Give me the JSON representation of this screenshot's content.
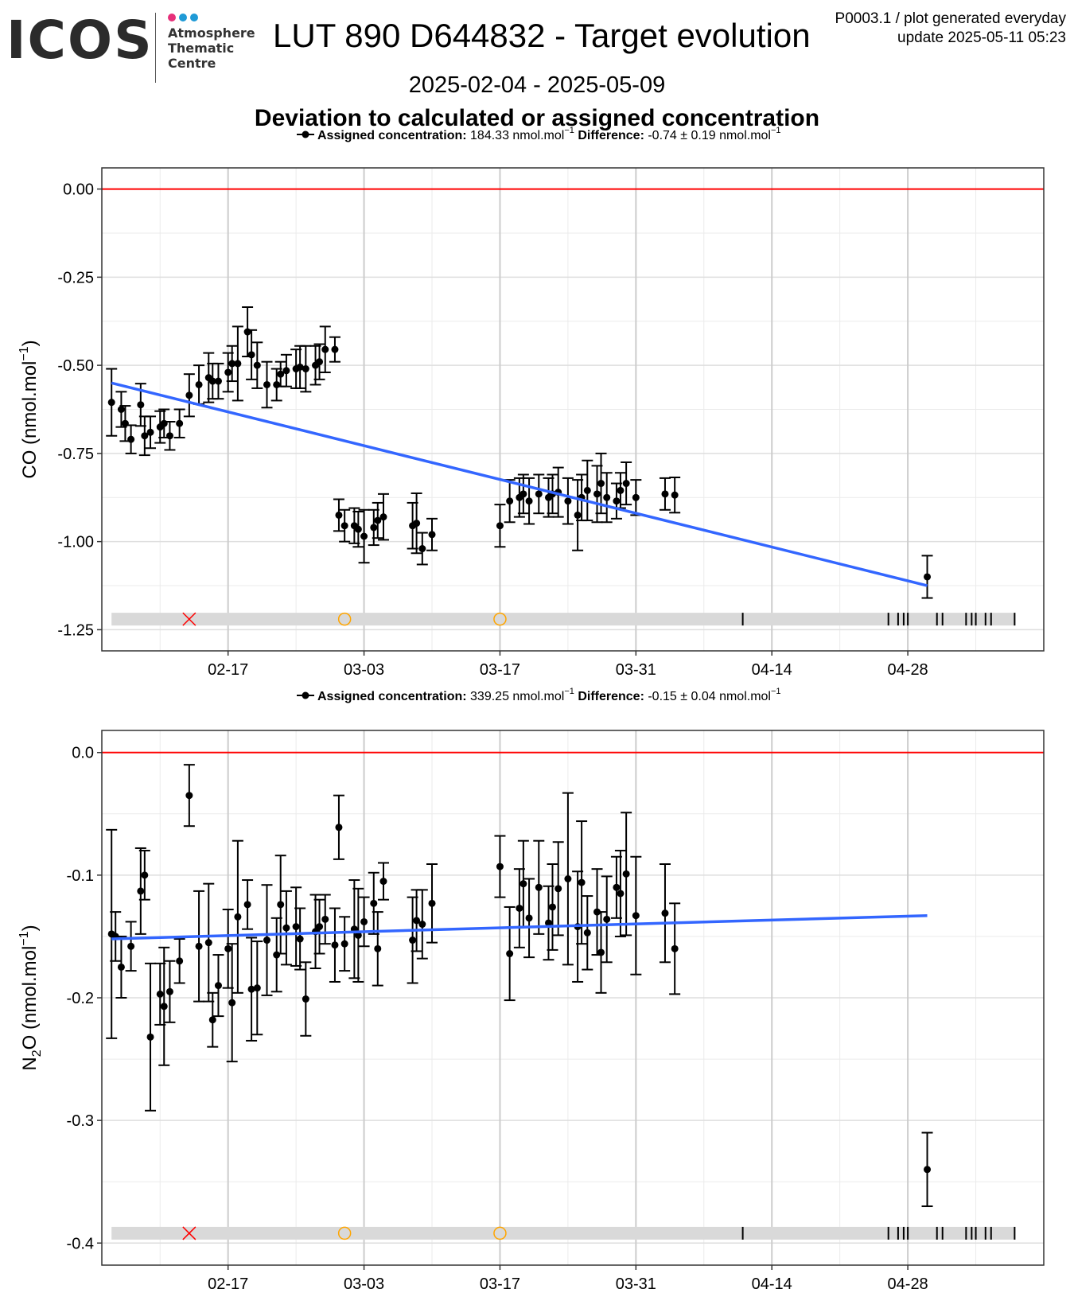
{
  "header": {
    "logo_text": "ICOS",
    "logo_lines": [
      "Atmosphere",
      "Thematic",
      "Centre"
    ],
    "logo_dot_colors": [
      "#e6307a",
      "#1f9ad6",
      "#1f9ad6"
    ],
    "title": "LUT 890 D644832 - Target evolution",
    "date_range": "2025-02-04 - 2025-05-09",
    "subtitle": "Deviation to calculated or assigned concentration",
    "meta_line1": "P0003.1 / plot generated everyday",
    "meta_line2": "update  2025-05-11 05:23"
  },
  "chart_data": [
    {
      "type": "scatter",
      "legend": {
        "assigned_label": "Assigned concentration:",
        "assigned_value": "184.33 nmol.mol",
        "assigned_exp": "−1",
        "difference_label": "Difference:",
        "difference_value": "-0.74 ± 0.19 nmol.mol",
        "difference_exp": "−1",
        "position": "top-center"
      },
      "ylabel": "CO (nmol.mol",
      "ylabel_exp": "−1",
      "ylabel_tail": ")",
      "ylim": [
        -1.31,
        0.06
      ],
      "yticks": [
        0.0,
        -0.25,
        -0.5,
        -0.75,
        -1.0,
        -1.25
      ],
      "ytick_labels": [
        "0.00",
        "-0.25",
        "-0.50",
        "-0.75",
        "-1.00",
        "-1.25"
      ],
      "y_minor": [
        -0.125,
        -0.375,
        -0.625,
        -0.875,
        -1.125
      ],
      "xlim": [
        "2025-02-04",
        "2025-05-12"
      ],
      "xticks": [
        "2025-02-17",
        "2025-03-03",
        "2025-03-17",
        "2025-03-31",
        "2025-04-14",
        "2025-04-28"
      ],
      "xtick_labels": [
        "02-17",
        "03-03",
        "03-17",
        "03-31",
        "04-14",
        "04-28"
      ],
      "grid": true,
      "reference_line": {
        "y": 0.0,
        "color": "#ff0000"
      },
      "trend": {
        "color": "#3366ff",
        "start": [
          "2025-02-05",
          -0.55
        ],
        "end": [
          "2025-04-30",
          -1.125
        ]
      },
      "points": [
        [
          "2025-02-05",
          -0.605,
          0.095
        ],
        [
          "2025-02-06",
          -0.625,
          0.05
        ],
        [
          "2025-02-06",
          -0.665,
          0.05
        ],
        [
          "2025-02-07",
          -0.71,
          0.04
        ],
        [
          "2025-02-08",
          -0.612,
          0.06
        ],
        [
          "2025-02-08",
          -0.7,
          0.055
        ],
        [
          "2025-02-09",
          -0.69,
          0.045
        ],
        [
          "2025-02-10",
          -0.675,
          0.045
        ],
        [
          "2025-02-10",
          -0.665,
          0.04
        ],
        [
          "2025-02-11",
          -0.7,
          0.04
        ],
        [
          "2025-02-12",
          -0.665,
          0.04
        ],
        [
          "2025-02-13",
          -0.585,
          0.06
        ],
        [
          "2025-02-14",
          -0.555,
          0.055
        ],
        [
          "2025-02-15",
          -0.535,
          0.07
        ],
        [
          "2025-02-15",
          -0.545,
          0.05
        ],
        [
          "2025-02-16",
          -0.545,
          0.05
        ],
        [
          "2025-02-17",
          -0.52,
          0.055
        ],
        [
          "2025-02-17",
          -0.495,
          0.05
        ],
        [
          "2025-02-18",
          -0.495,
          0.105
        ],
        [
          "2025-02-19",
          -0.405,
          0.07
        ],
        [
          "2025-02-19",
          -0.47,
          0.07
        ],
        [
          "2025-02-20",
          -0.5,
          0.065
        ],
        [
          "2025-02-21",
          -0.555,
          0.065
        ],
        [
          "2025-02-22",
          -0.555,
          0.045
        ],
        [
          "2025-02-22",
          -0.525,
          0.035
        ],
        [
          "2025-02-23",
          -0.515,
          0.045
        ],
        [
          "2025-02-24",
          -0.51,
          0.055
        ],
        [
          "2025-02-24",
          -0.505,
          0.06
        ],
        [
          "2025-02-25",
          -0.51,
          0.065
        ],
        [
          "2025-02-26",
          -0.5,
          0.055
        ],
        [
          "2025-02-26",
          -0.49,
          0.05
        ],
        [
          "2025-02-27",
          -0.455,
          0.065
        ],
        [
          "2025-02-28",
          -0.455,
          0.035
        ],
        [
          "2025-02-28",
          -0.925,
          0.045
        ],
        [
          "2025-03-01",
          -0.955,
          0.045
        ],
        [
          "2025-03-02",
          -0.955,
          0.05
        ],
        [
          "2025-03-02",
          -0.965,
          0.05
        ],
        [
          "2025-03-03",
          -0.985,
          0.075
        ],
        [
          "2025-03-04",
          -0.96,
          0.05
        ],
        [
          "2025-03-04",
          -0.94,
          0.05
        ],
        [
          "2025-03-05",
          -0.93,
          0.065
        ],
        [
          "2025-03-08",
          -0.955,
          0.065
        ],
        [
          "2025-03-08",
          -0.948,
          0.085
        ],
        [
          "2025-03-09",
          -1.02,
          0.045
        ],
        [
          "2025-03-10",
          -0.98,
          0.045
        ],
        [
          "2025-03-17",
          -0.955,
          0.06
        ],
        [
          "2025-03-18",
          -0.885,
          0.06
        ],
        [
          "2025-03-19",
          -0.875,
          0.055
        ],
        [
          "2025-03-19",
          -0.865,
          0.055
        ],
        [
          "2025-03-20",
          -0.885,
          0.065
        ],
        [
          "2025-03-21",
          -0.865,
          0.055
        ],
        [
          "2025-03-22",
          -0.875,
          0.055
        ],
        [
          "2025-03-22",
          -0.865,
          0.055
        ],
        [
          "2025-03-23",
          -0.86,
          0.07
        ],
        [
          "2025-03-24",
          -0.885,
          0.065
        ],
        [
          "2025-03-25",
          -0.925,
          0.1
        ],
        [
          "2025-03-25",
          -0.875,
          0.065
        ],
        [
          "2025-03-26",
          -0.855,
          0.085
        ],
        [
          "2025-03-27",
          -0.865,
          0.08
        ],
        [
          "2025-03-27",
          -0.835,
          0.085
        ],
        [
          "2025-03-28",
          -0.875,
          0.07
        ],
        [
          "2025-03-29",
          -0.885,
          0.05
        ],
        [
          "2025-03-29",
          -0.855,
          0.05
        ],
        [
          "2025-03-30",
          -0.835,
          0.06
        ],
        [
          "2025-03-31",
          -0.875,
          0.05
        ],
        [
          "2025-04-03",
          -0.865,
          0.045
        ],
        [
          "2025-04-04",
          -0.868,
          0.05
        ],
        [
          "2025-04-30",
          -1.1,
          0.06
        ]
      ],
      "status_band": {
        "y": -1.22,
        "color": "#d9d9d9",
        "x_marks": [
          "2025-02-13"
        ],
        "open_circles": [
          "2025-03-01",
          "2025-03-17"
        ],
        "ticks": [
          "2025-04-11",
          "2025-04-26",
          "2025-04-27",
          "2025-04-27",
          "2025-04-28",
          "2025-05-01",
          "2025-05-01",
          "2025-05-04",
          "2025-05-04",
          "2025-05-05",
          "2025-05-06",
          "2025-05-06",
          "2025-05-09"
        ]
      }
    },
    {
      "type": "scatter",
      "legend": {
        "assigned_label": "Assigned concentration:",
        "assigned_value": "339.25 nmol.mol",
        "assigned_exp": "−1",
        "difference_label": "Difference:",
        "difference_value": "-0.15 ± 0.04 nmol.mol",
        "difference_exp": "−1",
        "position": "top-center"
      },
      "ylabel": "N",
      "ylabel_sub": "2",
      "ylabel_mid": "O (nmol.mol",
      "ylabel_exp": "−1",
      "ylabel_tail": ")",
      "ylim": [
        -0.418,
        0.018
      ],
      "yticks": [
        0.0,
        -0.1,
        -0.2,
        -0.3,
        -0.4
      ],
      "ytick_labels": [
        "0.0",
        "-0.1",
        "-0.2",
        "-0.3",
        "-0.4"
      ],
      "y_minor": [
        -0.05,
        -0.15,
        -0.25,
        -0.35
      ],
      "xlim": [
        "2025-02-04",
        "2025-05-12"
      ],
      "xticks": [
        "2025-02-17",
        "2025-03-03",
        "2025-03-17",
        "2025-03-31",
        "2025-04-14",
        "2025-04-28"
      ],
      "xtick_labels": [
        "02-17",
        "03-03",
        "03-17",
        "03-31",
        "04-14",
        "04-28"
      ],
      "grid": true,
      "reference_line": {
        "y": 0.0,
        "color": "#ff0000"
      },
      "trend": {
        "color": "#3366ff",
        "start": [
          "2025-02-05",
          -0.152
        ],
        "end": [
          "2025-04-30",
          -0.133
        ]
      },
      "points": [
        [
          "2025-02-05",
          -0.148,
          0.085
        ],
        [
          "2025-02-05",
          -0.15,
          0.02
        ],
        [
          "2025-02-06",
          -0.175,
          0.025
        ],
        [
          "2025-02-07",
          -0.158,
          0.02
        ],
        [
          "2025-02-08",
          -0.113,
          0.035
        ],
        [
          "2025-02-08",
          -0.1,
          0.02
        ],
        [
          "2025-02-09",
          -0.232,
          0.06
        ],
        [
          "2025-02-10",
          -0.197,
          0.025
        ],
        [
          "2025-02-10",
          -0.207,
          0.048
        ],
        [
          "2025-02-11",
          -0.195,
          0.025
        ],
        [
          "2025-02-12",
          -0.17,
          0.018
        ],
        [
          "2025-02-13",
          -0.035,
          0.025
        ],
        [
          "2025-02-14",
          -0.158,
          0.045
        ],
        [
          "2025-02-15",
          -0.155,
          0.048
        ],
        [
          "2025-02-15",
          -0.218,
          0.022
        ],
        [
          "2025-02-16",
          -0.19,
          0.025
        ],
        [
          "2025-02-17",
          -0.16,
          0.032
        ],
        [
          "2025-02-17",
          -0.204,
          0.048
        ],
        [
          "2025-02-18",
          -0.134,
          0.062
        ],
        [
          "2025-02-19",
          -0.124,
          0.02
        ],
        [
          "2025-02-19",
          -0.193,
          0.042
        ],
        [
          "2025-02-20",
          -0.192,
          0.038
        ],
        [
          "2025-02-21",
          -0.153,
          0.045
        ],
        [
          "2025-02-22",
          -0.165,
          0.03
        ],
        [
          "2025-02-22",
          -0.124,
          0.04
        ],
        [
          "2025-02-23",
          -0.143,
          0.03
        ],
        [
          "2025-02-24",
          -0.142,
          0.032
        ],
        [
          "2025-02-24",
          -0.152,
          0.025
        ],
        [
          "2025-02-25",
          -0.201,
          0.03
        ],
        [
          "2025-02-26",
          -0.146,
          0.03
        ],
        [
          "2025-02-26",
          -0.142,
          0.022
        ],
        [
          "2025-02-27",
          -0.136,
          0.02
        ],
        [
          "2025-02-28",
          -0.157,
          0.03
        ],
        [
          "2025-02-28",
          -0.061,
          0.026
        ],
        [
          "2025-03-01",
          -0.156,
          0.022
        ],
        [
          "2025-03-02",
          -0.144,
          0.04
        ],
        [
          "2025-03-02",
          -0.149,
          0.038
        ],
        [
          "2025-03-03",
          -0.138,
          0.02
        ],
        [
          "2025-03-04",
          -0.123,
          0.025
        ],
        [
          "2025-03-04",
          -0.16,
          0.03
        ],
        [
          "2025-03-05",
          -0.105,
          0.015
        ],
        [
          "2025-03-08",
          -0.153,
          0.035
        ],
        [
          "2025-03-08",
          -0.137,
          0.025
        ],
        [
          "2025-03-09",
          -0.14,
          0.028
        ],
        [
          "2025-03-10",
          -0.123,
          0.032
        ],
        [
          "2025-03-17",
          -0.093,
          0.025
        ],
        [
          "2025-03-18",
          -0.164,
          0.038
        ],
        [
          "2025-03-19",
          -0.127,
          0.032
        ],
        [
          "2025-03-19",
          -0.107,
          0.035
        ],
        [
          "2025-03-20",
          -0.135,
          0.032
        ],
        [
          "2025-03-21",
          -0.11,
          0.038
        ],
        [
          "2025-03-22",
          -0.139,
          0.03
        ],
        [
          "2025-03-22",
          -0.126,
          0.035
        ],
        [
          "2025-03-23",
          -0.111,
          0.038
        ],
        [
          "2025-03-24",
          -0.103,
          0.07
        ],
        [
          "2025-03-25",
          -0.142,
          0.045
        ],
        [
          "2025-03-25",
          -0.106,
          0.05
        ],
        [
          "2025-03-26",
          -0.147,
          0.03
        ],
        [
          "2025-03-27",
          -0.13,
          0.035
        ],
        [
          "2025-03-27",
          -0.163,
          0.033
        ],
        [
          "2025-03-28",
          -0.136,
          0.035
        ],
        [
          "2025-03-29",
          -0.11,
          0.025
        ],
        [
          "2025-03-29",
          -0.115,
          0.035
        ],
        [
          "2025-03-30",
          -0.099,
          0.05
        ],
        [
          "2025-03-31",
          -0.133,
          0.048
        ],
        [
          "2025-04-03",
          -0.131,
          0.04
        ],
        [
          "2025-04-04",
          -0.16,
          0.037
        ],
        [
          "2025-04-30",
          -0.34,
          0.03
        ]
      ],
      "status_band": {
        "y": -0.392,
        "color": "#d9d9d9",
        "x_marks": [
          "2025-02-13"
        ],
        "open_circles": [
          "2025-03-01",
          "2025-03-17"
        ],
        "ticks": [
          "2025-04-11",
          "2025-04-26",
          "2025-04-27",
          "2025-04-27",
          "2025-04-28",
          "2025-05-01",
          "2025-05-01",
          "2025-05-04",
          "2025-05-04",
          "2025-05-05",
          "2025-05-06",
          "2025-05-06",
          "2025-05-09"
        ]
      }
    }
  ]
}
